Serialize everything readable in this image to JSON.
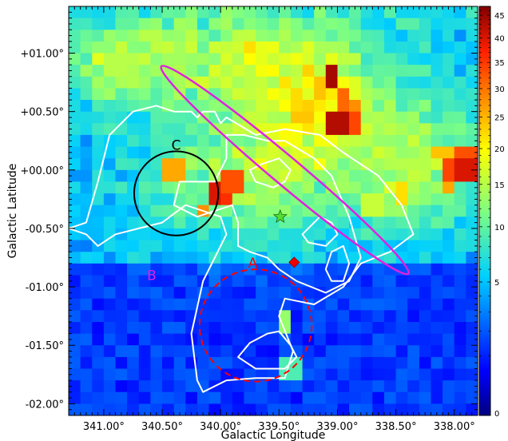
{
  "chart_data": {
    "type": "heatmap",
    "xlabel": "Galactic Longitude",
    "ylabel": "Galactic Latitude",
    "x_range_deg": [
      341.3,
      337.8
    ],
    "y_range_deg": [
      -2.1,
      1.4
    ],
    "x_ticks": [
      {
        "value": 341.0,
        "label": "341.00°"
      },
      {
        "value": 340.5,
        "label": "340.50°"
      },
      {
        "value": 340.0,
        "label": "340.00°"
      },
      {
        "value": 339.5,
        "label": "339.50°"
      },
      {
        "value": 339.0,
        "label": "339.00°"
      },
      {
        "value": 338.5,
        "label": "338.50°"
      },
      {
        "value": 338.0,
        "label": "338.00°"
      }
    ],
    "y_ticks": [
      {
        "value": 1.0,
        "label": "+01.00°"
      },
      {
        "value": 0.5,
        "label": "+00.50°"
      },
      {
        "value": 0.0,
        "label": "+00.00°"
      },
      {
        "value": -0.5,
        "label": "-00.50°"
      },
      {
        "value": -1.0,
        "label": "-01.00°"
      },
      {
        "value": -1.5,
        "label": "-01.50°"
      },
      {
        "value": -2.0,
        "label": "-02.00°"
      }
    ],
    "colorbar": {
      "min": 0,
      "max": 47,
      "scale": "sqrt",
      "colormap": "jet",
      "labels": [
        "45",
        "40",
        "35",
        "30",
        "25",
        "20",
        "15",
        "10",
        "5",
        "0"
      ],
      "label_values": [
        45,
        40,
        35,
        30,
        25,
        20,
        15,
        10,
        5,
        0
      ]
    },
    "grid": false,
    "hotspots": [
      {
        "l": 339.05,
        "b": 0.78,
        "value": 44
      },
      {
        "l": 338.98,
        "b": 0.4,
        "value": 43
      },
      {
        "l": 338.85,
        "b": 0.4,
        "value": 34
      },
      {
        "l": 338.95,
        "b": 0.6,
        "value": 31
      },
      {
        "l": 338.85,
        "b": 0.55,
        "value": 28
      },
      {
        "l": 339.15,
        "b": 0.7,
        "value": 24
      },
      {
        "l": 340.05,
        "b": -0.2,
        "value": 40
      },
      {
        "l": 339.95,
        "b": -0.25,
        "value": 36
      },
      {
        "l": 339.9,
        "b": -0.12,
        "value": 33
      },
      {
        "l": 340.15,
        "b": -0.35,
        "value": 28
      },
      {
        "l": 340.4,
        "b": 0.0,
        "value": 26
      },
      {
        "l": 337.92,
        "b": 0.02,
        "value": 40
      },
      {
        "l": 338.05,
        "b": 0.02,
        "value": 34
      },
      {
        "l": 337.92,
        "b": 0.15,
        "value": 33
      },
      {
        "l": 338.05,
        "b": -0.1,
        "value": 26
      },
      {
        "l": 338.1,
        "b": 0.15,
        "value": 24
      },
      {
        "l": 338.45,
        "b": -0.2,
        "value": 22
      },
      {
        "l": 339.75,
        "b": 1.05,
        "value": 22
      },
      {
        "l": 340.6,
        "b": 1.15,
        "value": 15
      },
      {
        "l": 339.8,
        "b": 0.7,
        "value": 14
      },
      {
        "l": 338.7,
        "b": -0.3,
        "value": 16
      },
      {
        "l": 340.9,
        "b": 0.9,
        "value": 15
      },
      {
        "l": 339.45,
        "b": -1.3,
        "value": 13
      },
      {
        "l": 339.4,
        "b": -1.7,
        "value": 9
      }
    ],
    "regions": [
      {
        "id": "A",
        "label": "A",
        "shape": "circle",
        "l": 339.7,
        "b": -1.33,
        "radius_deg": 0.48,
        "style": "dashed",
        "color": "#ff0000"
      },
      {
        "id": "B",
        "label": "B",
        "shape": "ellipse",
        "l": 339.45,
        "b": 0.0,
        "semi_major_deg": 1.38,
        "semi_minor_deg": 0.12,
        "angle_deg": -40,
        "color": "#e020e0"
      },
      {
        "id": "C",
        "label": "C",
        "shape": "circle",
        "l": 340.38,
        "b": -0.2,
        "radius_deg": 0.36,
        "style": "solid",
        "color": "#000000"
      }
    ],
    "markers": [
      {
        "shape": "star",
        "l": 339.49,
        "b": -0.4,
        "color": "#55dd33"
      },
      {
        "shape": "diamond",
        "l": 339.37,
        "b": -0.79,
        "color": "#ee0000"
      }
    ],
    "contours": [
      {
        "level": "outer",
        "color": "#ffffff",
        "points": [
          [
            341.3,
            -0.5
          ],
          [
            341.15,
            -0.45
          ],
          [
            341.05,
            -0.1
          ],
          [
            340.95,
            0.3
          ],
          [
            340.75,
            0.5
          ],
          [
            340.55,
            0.55
          ],
          [
            340.4,
            0.5
          ],
          [
            340.25,
            0.5
          ],
          [
            340.2,
            0.45
          ],
          [
            340.15,
            0.5
          ],
          [
            340.05,
            0.5
          ],
          [
            340.0,
            0.4
          ],
          [
            339.95,
            0.45
          ],
          [
            339.7,
            0.3
          ],
          [
            339.45,
            0.35
          ],
          [
            339.15,
            0.3
          ],
          [
            338.95,
            0.15
          ],
          [
            338.65,
            -0.05
          ],
          [
            338.45,
            -0.3
          ],
          [
            338.35,
            -0.55
          ],
          [
            338.55,
            -0.7
          ],
          [
            338.8,
            -0.8
          ],
          [
            338.95,
            -1.0
          ],
          [
            339.2,
            -1.15
          ],
          [
            339.45,
            -1.1
          ],
          [
            339.5,
            -1.25
          ],
          [
            339.38,
            -1.55
          ],
          [
            339.45,
            -1.78
          ],
          [
            339.7,
            -1.78
          ],
          [
            339.95,
            -1.8
          ],
          [
            340.15,
            -1.9
          ],
          [
            340.2,
            -1.8
          ],
          [
            340.25,
            -1.4
          ],
          [
            340.15,
            -0.95
          ],
          [
            340.05,
            -0.75
          ],
          [
            339.95,
            -0.55
          ],
          [
            340.0,
            -0.4
          ],
          [
            340.3,
            -0.3
          ],
          [
            340.5,
            -0.45
          ],
          [
            340.7,
            -0.5
          ],
          [
            340.9,
            -0.55
          ],
          [
            341.05,
            -0.65
          ],
          [
            341.15,
            -0.55
          ],
          [
            341.3,
            -0.5
          ]
        ]
      },
      {
        "level": "middle",
        "color": "#ffffff",
        "points": [
          [
            339.95,
            0.3
          ],
          [
            339.8,
            0.3
          ],
          [
            339.6,
            0.25
          ],
          [
            339.45,
            0.25
          ],
          [
            339.2,
            0.1
          ],
          [
            339.05,
            -0.05
          ],
          [
            338.9,
            -0.4
          ],
          [
            338.8,
            -0.75
          ],
          [
            338.9,
            -0.95
          ],
          [
            339.1,
            -1.05
          ],
          [
            339.35,
            -0.95
          ],
          [
            339.5,
            -0.85
          ],
          [
            339.6,
            -0.75
          ],
          [
            339.75,
            -0.7
          ],
          [
            339.85,
            -0.65
          ],
          [
            339.85,
            -0.45
          ],
          [
            339.9,
            -0.3
          ],
          [
            340.2,
            -0.4
          ],
          [
            340.4,
            -0.3
          ],
          [
            340.35,
            -0.1
          ],
          [
            340.05,
            -0.1
          ],
          [
            339.95,
            0.1
          ],
          [
            339.95,
            0.3
          ]
        ]
      },
      {
        "level": "inner",
        "color": "#ffffff",
        "points": [
          [
            339.65,
            0.05
          ],
          [
            339.5,
            0.1
          ],
          [
            339.4,
            0.0
          ],
          [
            339.45,
            -0.1
          ],
          [
            339.55,
            -0.15
          ],
          [
            339.7,
            -0.1
          ],
          [
            339.75,
            0.0
          ],
          [
            339.65,
            0.05
          ]
        ]
      },
      {
        "level": "inner",
        "color": "#ffffff",
        "points": [
          [
            339.3,
            -0.55
          ],
          [
            339.15,
            -0.4
          ],
          [
            339.05,
            -0.45
          ],
          [
            339.0,
            -0.55
          ],
          [
            339.1,
            -0.65
          ],
          [
            339.25,
            -0.62
          ],
          [
            339.3,
            -0.55
          ]
        ]
      },
      {
        "level": "inner",
        "color": "#ffffff",
        "points": [
          [
            339.05,
            -0.7
          ],
          [
            338.95,
            -0.65
          ],
          [
            338.9,
            -0.8
          ],
          [
            338.95,
            -0.95
          ],
          [
            339.05,
            -0.95
          ],
          [
            339.1,
            -0.85
          ],
          [
            339.05,
            -0.7
          ]
        ]
      },
      {
        "level": "inner",
        "color": "#ffffff",
        "points": [
          [
            339.6,
            -1.4
          ],
          [
            339.5,
            -1.38
          ],
          [
            339.4,
            -1.5
          ],
          [
            339.35,
            -1.6
          ],
          [
            339.45,
            -1.7
          ],
          [
            339.7,
            -1.7
          ],
          [
            339.85,
            -1.6
          ],
          [
            339.75,
            -1.48
          ],
          [
            339.6,
            -1.4
          ]
        ]
      }
    ]
  }
}
